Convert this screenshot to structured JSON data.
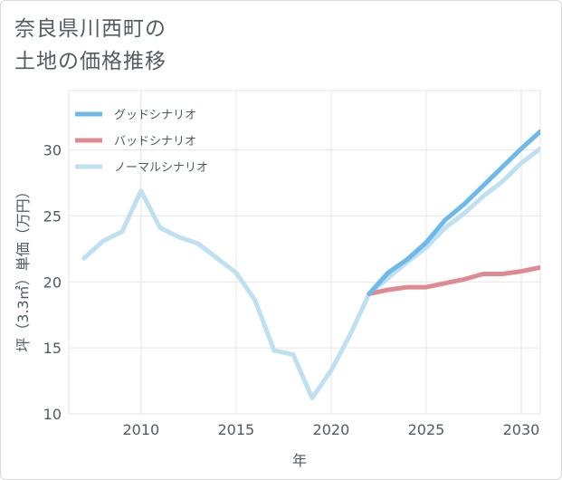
{
  "title_lines": [
    "奈良県川西町の",
    "土地の価格推移"
  ],
  "chart_data": {
    "type": "line",
    "xlabel": "年",
    "ylabel": "坪（3.3㎡）単価（万円）",
    "xlim": [
      2006.2,
      2031
    ],
    "ylim": [
      10,
      34.5
    ],
    "x_ticks": [
      2010,
      2015,
      2020,
      2025,
      2030
    ],
    "y_ticks": [
      10,
      15,
      20,
      25,
      30
    ],
    "grid": true,
    "legend_position": "top-left",
    "series": [
      {
        "name": "グッドシナリオ",
        "color": "#6cb9ec",
        "x": [
          2022,
          2023,
          2024,
          2025,
          2026,
          2027,
          2028,
          2029,
          2030,
          2031
        ],
        "values": [
          19.1,
          20.7,
          21.7,
          23.0,
          24.7,
          25.9,
          27.3,
          28.7,
          30.1,
          31.4
        ]
      },
      {
        "name": "バッドシナリオ",
        "color": "#df8a91",
        "x": [
          2022,
          2023,
          2024,
          2025,
          2026,
          2027,
          2028,
          2029,
          2030,
          2031
        ],
        "values": [
          19.1,
          19.4,
          19.6,
          19.6,
          19.9,
          20.2,
          20.6,
          20.6,
          20.8,
          21.1
        ]
      },
      {
        "name": "ノーマルシナリオ",
        "color": "#bfe0f1",
        "x": [
          2007,
          2008,
          2009,
          2010,
          2011,
          2012,
          2013,
          2014,
          2015,
          2016,
          2017,
          2018,
          2019,
          2020,
          2021,
          2022,
          2023,
          2024,
          2025,
          2026,
          2027,
          2028,
          2029,
          2030,
          2031
        ],
        "values": [
          21.8,
          23.1,
          23.8,
          26.9,
          24.1,
          23.4,
          22.9,
          21.8,
          20.7,
          18.6,
          14.8,
          14.5,
          11.2,
          13.3,
          16.0,
          19.1,
          20.3,
          21.5,
          22.6,
          24.1,
          25.2,
          26.5,
          27.6,
          29.0,
          30.1
        ]
      }
    ]
  }
}
